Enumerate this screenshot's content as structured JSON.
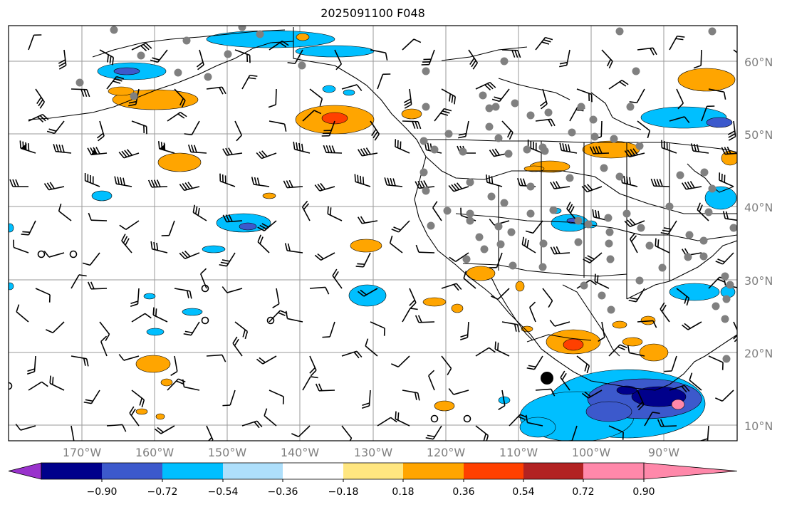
{
  "title": "2025091100 F048",
  "lat_labels": [
    "60°N",
    "50°N",
    "40°N",
    "30°N",
    "20°N",
    "10°N"
  ],
  "lon_labels": [
    "170°W",
    "160°W",
    "150°W",
    "140°W",
    "130°W",
    "120°W",
    "110°W",
    "100°W",
    "90°W"
  ],
  "colorbar": {
    "labels": [
      "−0.90",
      "−0.72",
      "−0.54",
      "−0.36",
      "−0.18",
      "0.18",
      "0.36",
      "0.54",
      "0.72",
      "0.90"
    ],
    "colors": [
      "#9932cc",
      "#00008b",
      "#3c59cc",
      "#00bfff",
      "#aedffb",
      "#ffffff",
      "#ffe680",
      "#ffa500",
      "#ff4000",
      "#b22222",
      "#ff88aa"
    ]
  },
  "colors": {
    "frame": "#000000",
    "grid": "#9a9a9a",
    "coast": "#000000",
    "station_dot": "#808080",
    "orange": "#ffa500",
    "red": "#ff4000",
    "yellow": "#ffe680",
    "cyan": "#00bfff",
    "royal": "#3c59cc",
    "navy": "#00008b",
    "pink": "#ff88aa"
  }
}
